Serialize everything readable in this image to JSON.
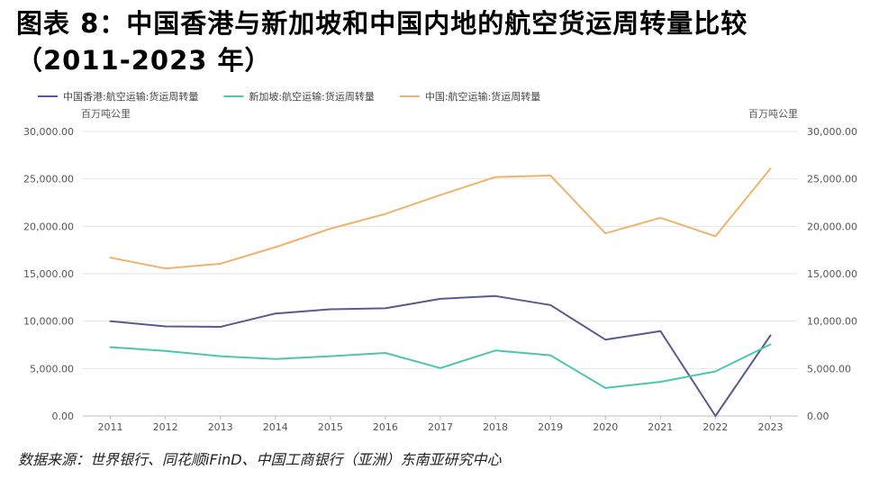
{
  "title": {
    "line1": "图表 8：中国香港与新加坡和中国内地的航空货运周转量比较",
    "line2": "（2011-2023 年）"
  },
  "source": "数据来源：世界银行、同花顺iFinD、中国工商银行（亚洲）东南亚研究中心",
  "chart_data": {
    "type": "line",
    "unit_left": "百万吨公里",
    "unit_right": "百万吨公里",
    "categories": [
      "2011",
      "2012",
      "2013",
      "2014",
      "2015",
      "2016",
      "2017",
      "2018",
      "2019",
      "2020",
      "2021",
      "2022",
      "2023"
    ],
    "ylim": [
      0,
      30000
    ],
    "yticks": [
      0,
      5000,
      10000,
      15000,
      20000,
      25000,
      30000
    ],
    "ytick_labels": [
      "0.00",
      "5,000.00",
      "10,000.00",
      "15,000.00",
      "20,000.00",
      "25,000.00",
      "30,000.00"
    ],
    "grid": true,
    "legend_position": "top-left",
    "series": [
      {
        "name": "中国香港:航空运输:货运周转量",
        "color": "#575c8e",
        "values": [
          10000,
          9450,
          9400,
          10800,
          11250,
          11350,
          12350,
          12650,
          11700,
          8050,
          8950,
          0,
          8500
        ]
      },
      {
        "name": "新加坡:航空运输:货运周转量",
        "color": "#4cc6ad",
        "values": [
          7250,
          6850,
          6300,
          6000,
          6300,
          6650,
          5050,
          6900,
          6400,
          2950,
          3600,
          4700,
          7550
        ]
      },
      {
        "name": "中国:航空运输:货运周转量",
        "color": "#f0b36c",
        "values": [
          16700,
          15550,
          16050,
          17800,
          19750,
          21300,
          23300,
          25200,
          25350,
          19250,
          20900,
          18950,
          26100
        ]
      }
    ]
  }
}
